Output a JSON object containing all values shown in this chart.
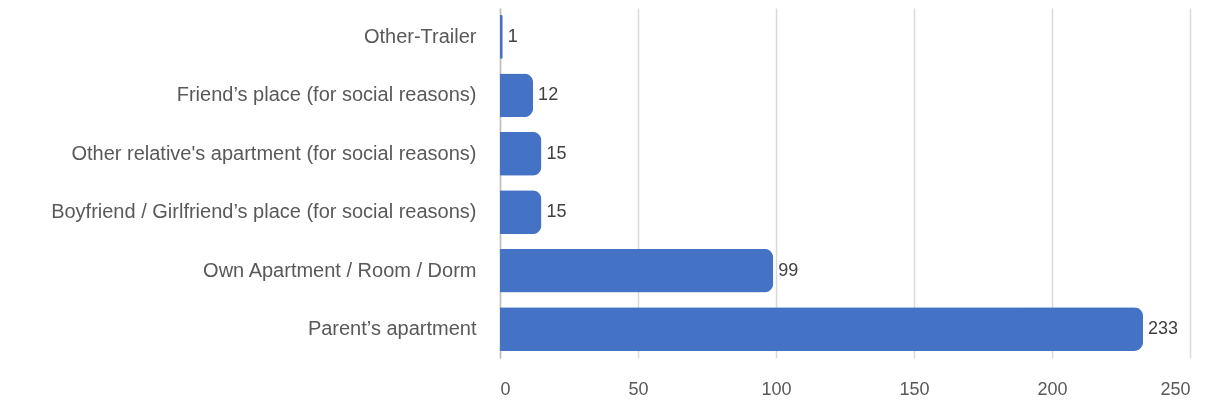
{
  "chart_data": {
    "type": "bar",
    "orientation": "horizontal",
    "categories": [
      "Other-Trailer",
      "Friend’s place (for social reasons)",
      "Other relative's apartment (for social reasons)",
      "Boyfriend / Girlfriend’s place (for social reasons)",
      "Own Apartment / Room / Dorm",
      "Parent’s apartment"
    ],
    "values": [
      1,
      12,
      15,
      15,
      99,
      233
    ],
    "color": "#4472c4",
    "xlim": [
      0,
      250
    ],
    "xticks": [
      0,
      50,
      100,
      150,
      200,
      250
    ],
    "grid": "x",
    "data_labels": true
  }
}
